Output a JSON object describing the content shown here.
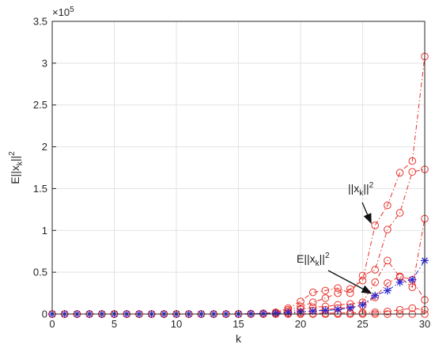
{
  "chart_data": {
    "type": "line",
    "xlabel": "k",
    "ylabel": "E||x_k||^2",
    "exponent_label": "×10^5",
    "xlim": [
      0,
      30
    ],
    "ylim": [
      0,
      350000
    ],
    "xticks": [
      0,
      5,
      10,
      15,
      20,
      25,
      30
    ],
    "yticks": [
      0,
      0.5,
      1,
      1.5,
      2,
      2.5,
      3,
      3.5
    ],
    "ytick_labels": [
      "0",
      "0.5",
      "1",
      "1.5",
      "2",
      "2.5",
      "3",
      "3.5"
    ],
    "grid": true,
    "x": [
      0,
      1,
      2,
      3,
      4,
      5,
      6,
      7,
      8,
      9,
      10,
      11,
      12,
      13,
      14,
      15,
      16,
      17,
      18,
      19,
      20,
      21,
      22,
      23,
      24,
      25,
      26,
      27,
      28,
      29,
      30
    ],
    "series": [
      {
        "marker": "circle",
        "line_style": "dashdot",
        "color": "#e8302a",
        "values": [
          0,
          0,
          0,
          0,
          0,
          0,
          0,
          0,
          0,
          0,
          0,
          0,
          0,
          0,
          0,
          100,
          300,
          800,
          2000,
          5000,
          9000,
          14000,
          19000,
          25000,
          30000,
          40000,
          106000,
          130000,
          169000,
          183000,
          308000
        ]
      },
      {
        "marker": "circle",
        "line_style": "dashdot",
        "color": "#e8302a",
        "values": [
          0,
          0,
          0,
          0,
          0,
          0,
          0,
          0,
          0,
          0,
          0,
          0,
          0,
          0,
          0,
          100,
          300,
          800,
          2000,
          7000,
          15000,
          26000,
          28000,
          31000,
          25000,
          46000,
          53000,
          101000,
          121000,
          170000,
          173000
        ]
      },
      {
        "marker": "circle",
        "line_style": "dashdot",
        "color": "#e8302a",
        "values": [
          0,
          0,
          0,
          0,
          0,
          0,
          0,
          0,
          0,
          0,
          0,
          0,
          0,
          0,
          0,
          100,
          300,
          600,
          1000,
          3000,
          6000,
          8000,
          9000,
          11000,
          12000,
          14000,
          38000,
          64000,
          44000,
          32000,
          114000
        ]
      },
      {
        "marker": "circle",
        "line_style": "dashdot",
        "color": "#e8302a",
        "values": [
          0,
          0,
          0,
          0,
          0,
          0,
          0,
          0,
          0,
          0,
          0,
          0,
          0,
          0,
          0,
          100,
          200,
          400,
          700,
          1000,
          2000,
          4000,
          5000,
          7000,
          8000,
          10000,
          20000,
          37000,
          45000,
          41000,
          17000
        ]
      },
      {
        "marker": "circle",
        "line_style": "dashdot",
        "color": "#e8302a",
        "values": [
          0,
          0,
          0,
          0,
          0,
          0,
          0,
          0,
          0,
          0,
          0,
          0,
          0,
          0,
          0,
          0,
          0,
          100,
          200,
          300,
          500,
          700,
          900,
          1100,
          1300,
          1500,
          2000,
          3000,
          5000,
          7000,
          5000
        ]
      },
      {
        "marker": "circle",
        "line_style": "dashdot",
        "color": "#e8302a",
        "values": [
          0,
          0,
          0,
          0,
          0,
          0,
          0,
          0,
          0,
          0,
          0,
          0,
          0,
          0,
          0,
          0,
          0,
          0,
          0,
          0,
          0,
          0,
          0,
          0,
          0,
          0,
          0,
          0,
          0,
          0,
          0
        ]
      },
      {
        "marker": "asterisk",
        "line_style": "dashdot",
        "color": "#2a2ad4",
        "values": [
          0,
          0,
          0,
          0,
          0,
          0,
          0,
          0,
          0,
          0,
          0,
          0,
          0,
          0,
          0,
          100,
          300,
          600,
          1000,
          1800,
          2700,
          3500,
          4300,
          5300,
          7300,
          11000,
          22000,
          28000,
          38000,
          41000,
          64000
        ]
      }
    ],
    "annotations": [
      {
        "text": "||x_k||^2",
        "target_x": 26,
        "target_y": 106000
      },
      {
        "text": "E||x_k||^2",
        "target_x": 26,
        "target_y": 22000
      }
    ]
  }
}
